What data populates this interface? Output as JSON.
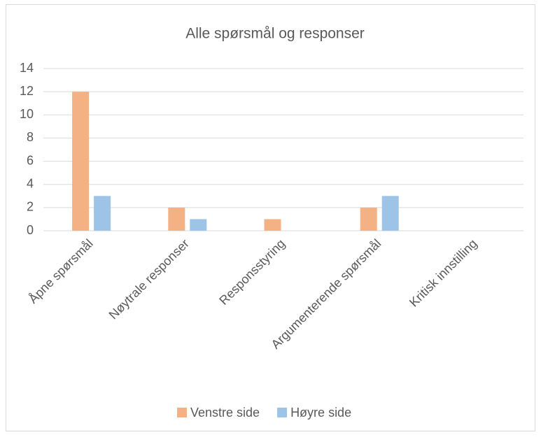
{
  "chart_data": {
    "type": "bar",
    "title": "Alle spørsmål og responser",
    "categories": [
      "Åpne spørsmål",
      "Nøytrale responser",
      "Responsstyring",
      "Argumenterende spørsmål",
      "Kritisk innstilling"
    ],
    "series": [
      {
        "name": "Venstre side",
        "color": "#f4b183",
        "values": [
          12,
          2,
          1,
          2,
          0
        ]
      },
      {
        "name": "Høyre side",
        "color": "#9dc3e6",
        "values": [
          3,
          1,
          0,
          3,
          0
        ]
      }
    ],
    "ylim": [
      0,
      14
    ],
    "yticks": [
      0,
      2,
      4,
      6,
      8,
      10,
      12,
      14
    ],
    "grid": true,
    "legend": "bottom"
  }
}
